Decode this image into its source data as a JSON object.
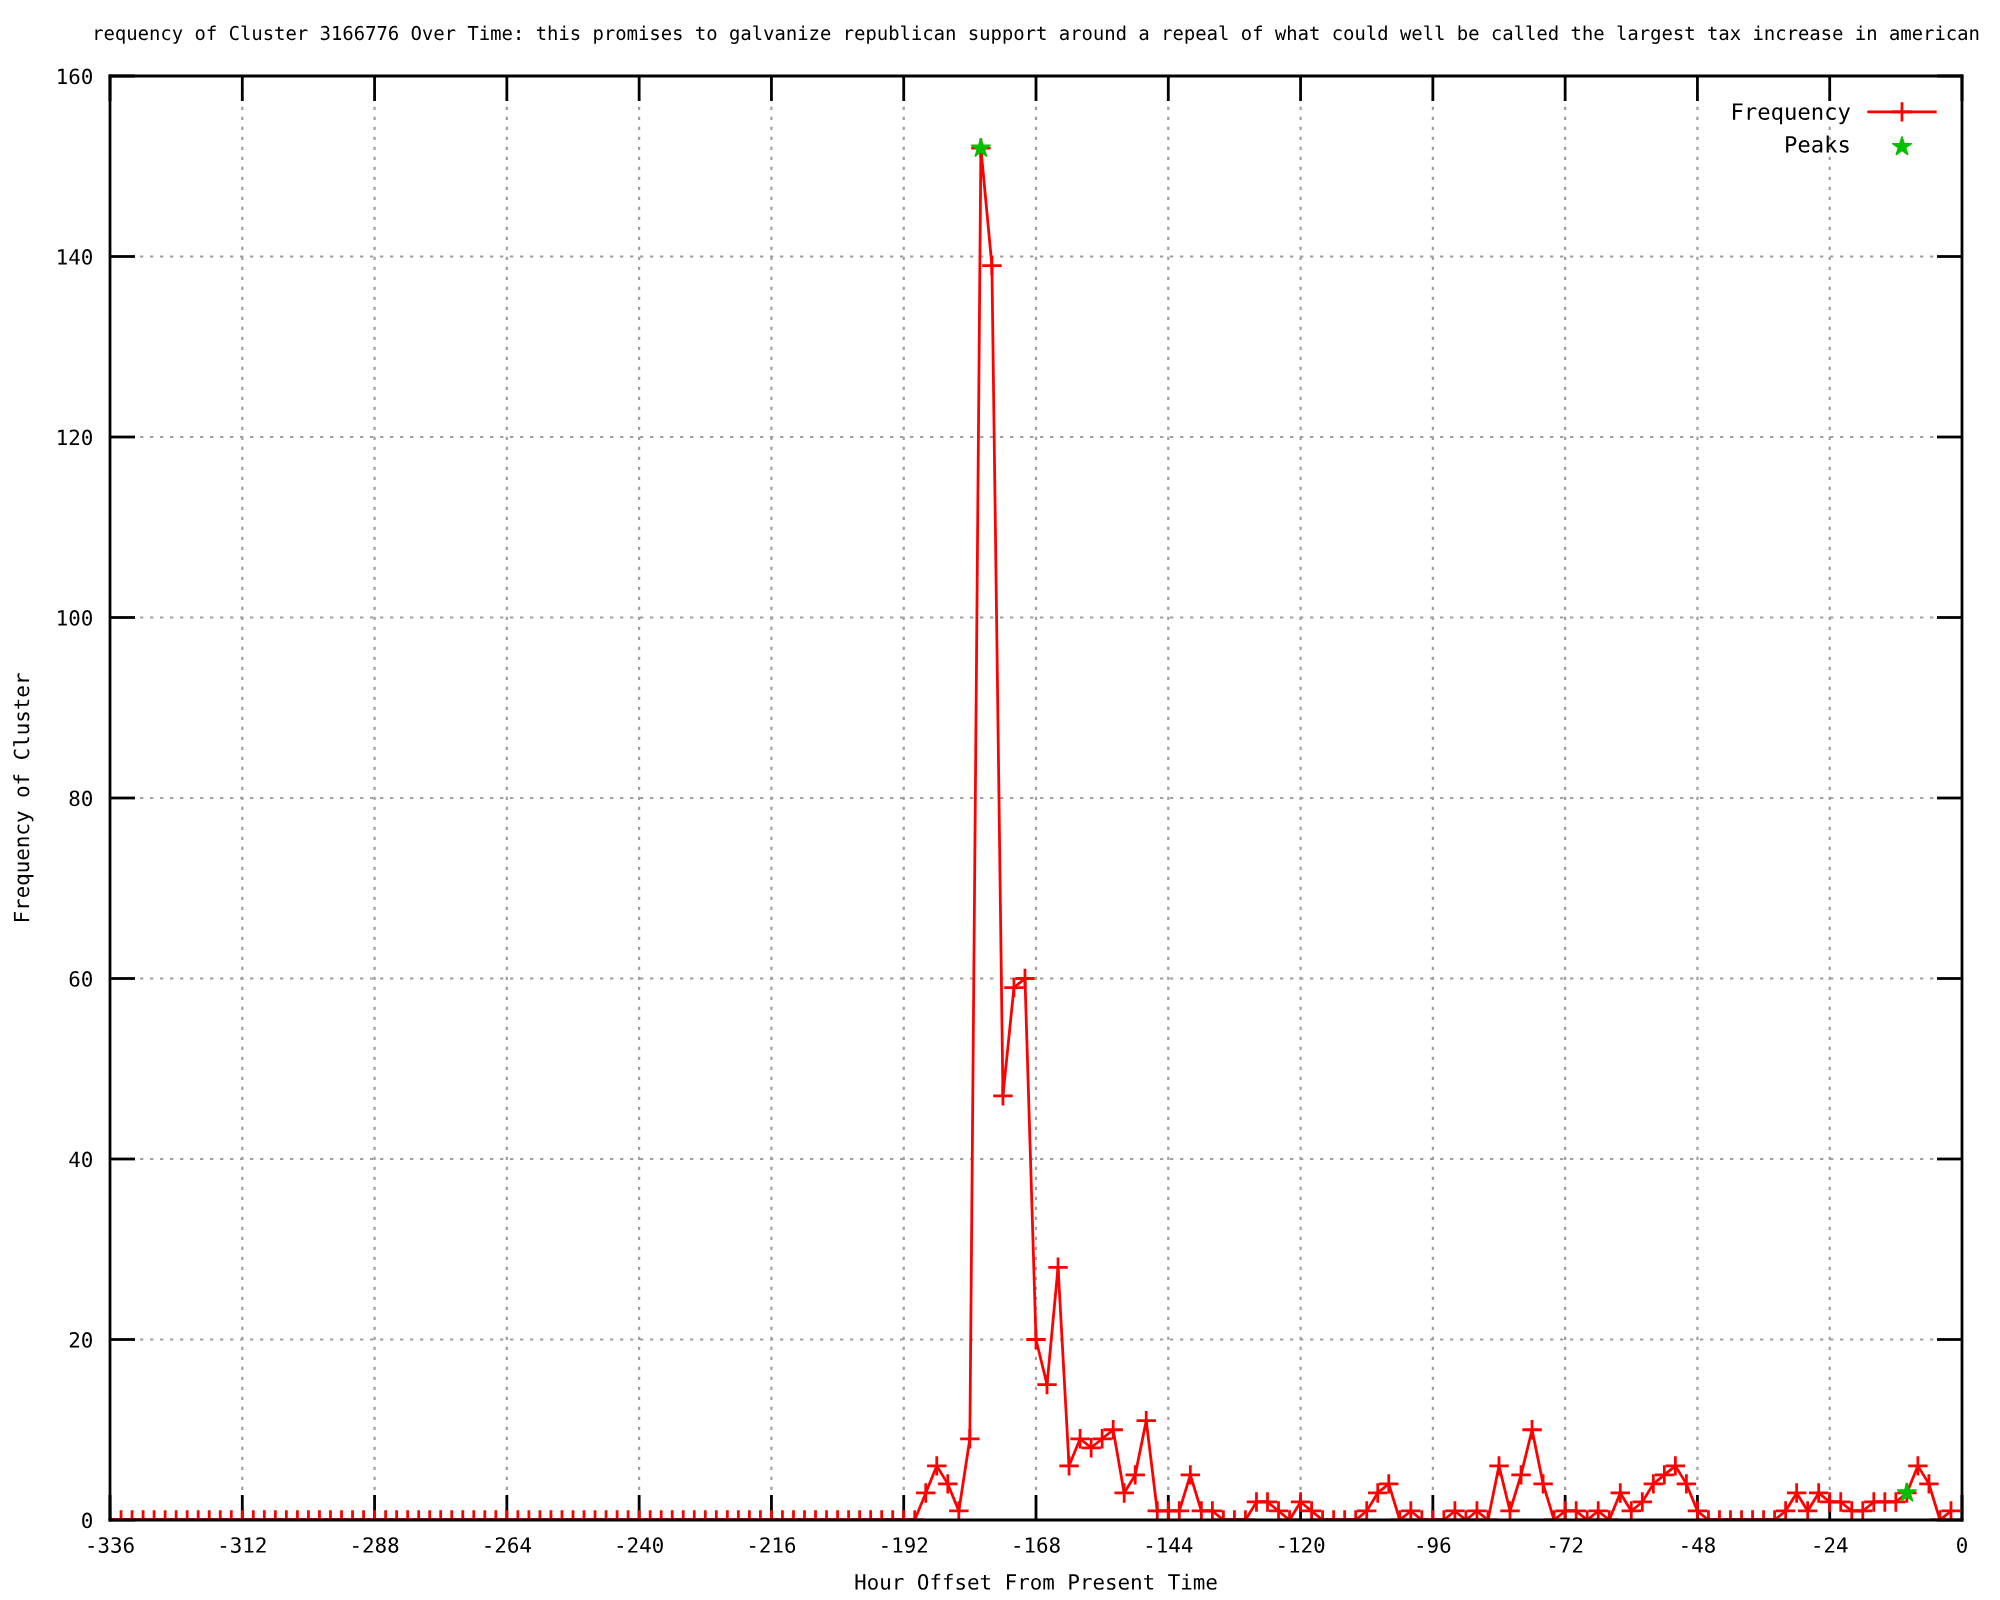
{
  "chart_data": {
    "type": "line",
    "title": "requency of Cluster 3166776 Over Time: this promises to galvanize republican support around a repeal of what could well be called the largest tax increase in american",
    "xlabel": "Hour Offset From Present Time",
    "ylabel": "Frequency of Cluster",
    "x": [
      -336,
      -334,
      -332,
      -330,
      -328,
      -326,
      -324,
      -322,
      -320,
      -318,
      -316,
      -314,
      -312,
      -310,
      -308,
      -306,
      -304,
      -302,
      -300,
      -298,
      -296,
      -294,
      -292,
      -290,
      -288,
      -286,
      -284,
      -282,
      -280,
      -278,
      -276,
      -274,
      -272,
      -270,
      -268,
      -266,
      -264,
      -262,
      -260,
      -258,
      -256,
      -254,
      -252,
      -250,
      -248,
      -246,
      -244,
      -242,
      -240,
      -238,
      -236,
      -234,
      -232,
      -230,
      -228,
      -226,
      -224,
      -222,
      -220,
      -218,
      -216,
      -214,
      -212,
      -210,
      -208,
      -206,
      -204,
      -202,
      -200,
      -198,
      -196,
      -194,
      -192,
      -190,
      -188,
      -186,
      -184,
      -182,
      -180,
      -178,
      -176,
      -174,
      -172,
      -170,
      -168,
      -166,
      -164,
      -162,
      -160,
      -158,
      -156,
      -154,
      -152,
      -150,
      -148,
      -146,
      -144,
      -142,
      -140,
      -138,
      -136,
      -134,
      -132,
      -130,
      -128,
      -126,
      -124,
      -122,
      -120,
      -118,
      -116,
      -114,
      -112,
      -110,
      -108,
      -106,
      -104,
      -102,
      -100,
      -98,
      -96,
      -94,
      -92,
      -90,
      -88,
      -86,
      -84,
      -82,
      -80,
      -78,
      -76,
      -74,
      -72,
      -70,
      -68,
      -66,
      -64,
      -62,
      -60,
      -58,
      -56,
      -54,
      -52,
      -50,
      -48,
      -46,
      -44,
      -42,
      -40,
      -38,
      -36,
      -34,
      -32,
      -30,
      -28,
      -26,
      -24,
      -22,
      -20,
      -18,
      -16,
      -14,
      -12,
      -10,
      -8,
      -6,
      -4,
      -2
    ],
    "series": [
      {
        "name": "Frequency",
        "color": "#ff0000",
        "marker": "cross",
        "line_style": "solid",
        "values": [
          0,
          0,
          0,
          0,
          0,
          0,
          0,
          0,
          0,
          0,
          0,
          0,
          0,
          0,
          0,
          0,
          0,
          0,
          0,
          0,
          0,
          0,
          0,
          0,
          0,
          0,
          0,
          0,
          0,
          0,
          0,
          0,
          0,
          0,
          0,
          0,
          0,
          0,
          0,
          0,
          0,
          0,
          0,
          0,
          0,
          0,
          0,
          0,
          0,
          0,
          0,
          0,
          0,
          0,
          0,
          0,
          0,
          0,
          0,
          0,
          0,
          0,
          0,
          0,
          0,
          0,
          0,
          0,
          0,
          0,
          0,
          0,
          0,
          0,
          3,
          6,
          4,
          1,
          9,
          152,
          139,
          47,
          59,
          60,
          20,
          15,
          28,
          6,
          9,
          8,
          9,
          10,
          3,
          5,
          11,
          1,
          1,
          1,
          5,
          1,
          1,
          0,
          0,
          0,
          2,
          2,
          1,
          0,
          2,
          1,
          0,
          0,
          0,
          0,
          1,
          3,
          4,
          0,
          1,
          0,
          0,
          0,
          1,
          0,
          1,
          0,
          6,
          1,
          5,
          10,
          4,
          0,
          1,
          1,
          0,
          1,
          0,
          3,
          1,
          2,
          4,
          5,
          6,
          4,
          1,
          0,
          0,
          0,
          0,
          0,
          0,
          0,
          1,
          3,
          1,
          3,
          2,
          2,
          1,
          1,
          2,
          2,
          2,
          3,
          6,
          4,
          0,
          1
        ]
      },
      {
        "name": "Peaks",
        "type": "scatter",
        "color": "#00c000",
        "marker": "star",
        "x": [
          -178,
          -10
        ],
        "values": [
          152,
          3
        ]
      }
    ],
    "xlim": [
      -336,
      0
    ],
    "xticks": [
      -336,
      -312,
      -288,
      -264,
      -240,
      -216,
      -192,
      -168,
      -144,
      -120,
      -96,
      -72,
      -48,
      -24,
      0
    ],
    "ylim": [
      0,
      160
    ],
    "yticks": [
      0,
      20,
      40,
      60,
      80,
      100,
      120,
      140,
      160
    ],
    "grid": true,
    "legend": "top right"
  }
}
